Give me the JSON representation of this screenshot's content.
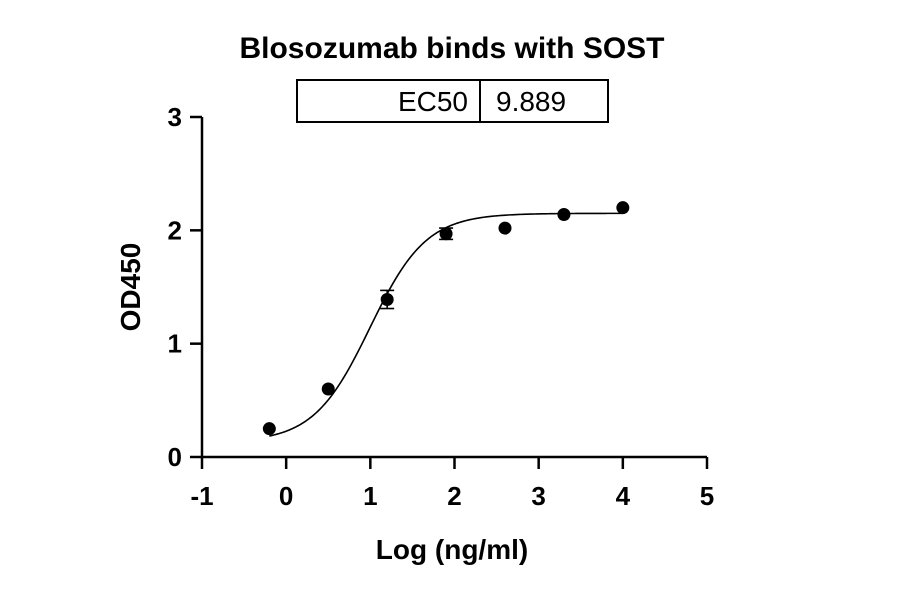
{
  "chart_data": {
    "type": "scatter",
    "title": "Blosozumab binds with SOST",
    "xlabel": "Log (ng/ml)",
    "ylabel": "OD450",
    "xlim": [
      -1,
      5
    ],
    "ylim": [
      0,
      3
    ],
    "xticks": [
      "-1",
      "0",
      "1",
      "2",
      "3",
      "4",
      "5"
    ],
    "yticks": [
      "0",
      "1",
      "2",
      "3"
    ],
    "grid": false,
    "series": [
      {
        "x": [
          -0.2,
          0.5,
          1.2,
          1.9,
          2.6,
          3.3,
          4.0
        ],
        "y": [
          0.25,
          0.6,
          1.39,
          1.97,
          2.02,
          2.14,
          2.2
        ],
        "yerr": [
          0.0,
          0.0,
          0.08,
          0.05,
          0.0,
          0.0,
          0.0
        ],
        "fit": {
          "model": "4PL",
          "bottom": 0.13,
          "top": 2.15,
          "log_ec50": 0.995,
          "hill": 1.3
        }
      }
    ],
    "annotation_table": {
      "label": "EC50",
      "value": "9.889"
    },
    "colors": {
      "marker": "#000000",
      "line": "#000000"
    }
  }
}
